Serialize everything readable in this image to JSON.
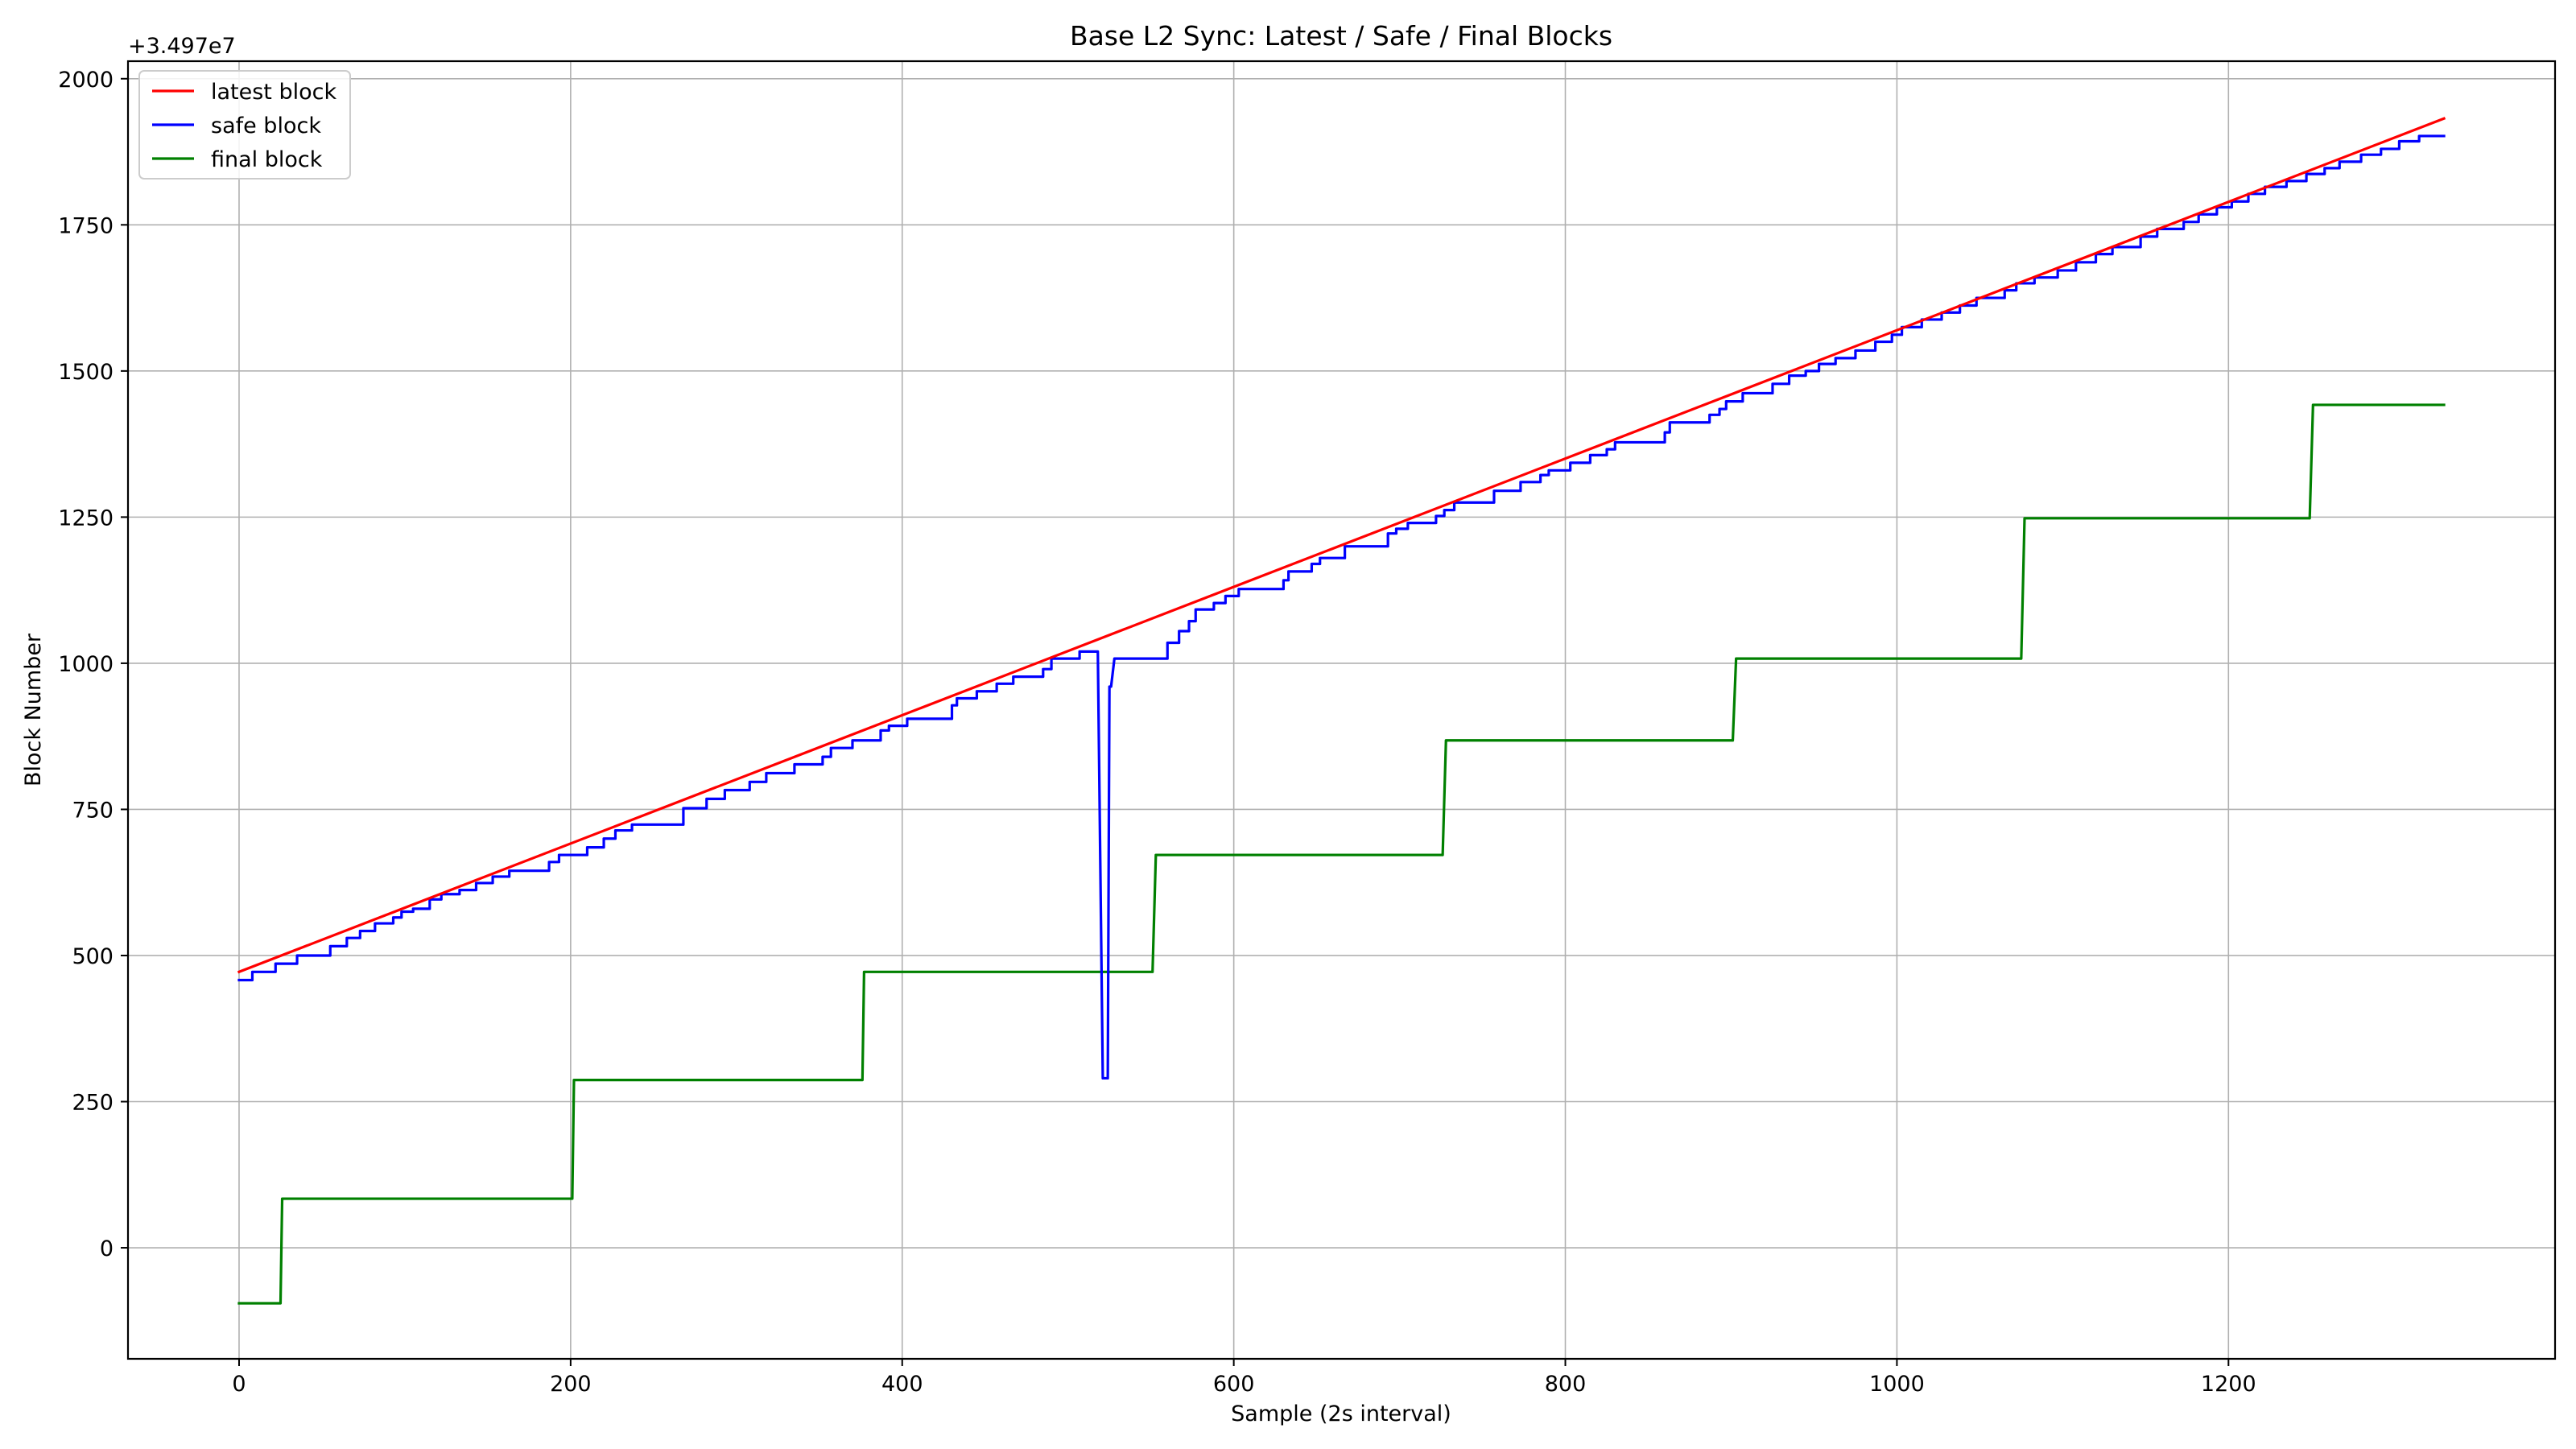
{
  "chart_data": {
    "type": "line",
    "title": "Base L2 Sync: Latest / Safe / Final Blocks",
    "xlabel": "Sample (2s interval)",
    "ylabel": "Block Number",
    "y_offset_label": "+3.497e7",
    "xlim": [
      -67,
      1397
    ],
    "ylim": [
      -190,
      2030
    ],
    "x_ticks": [
      0,
      200,
      400,
      600,
      800,
      1000,
      1200
    ],
    "y_ticks": [
      0,
      250,
      500,
      750,
      1000,
      1250,
      1500,
      1750,
      2000
    ],
    "grid": true,
    "legend_position": "upper-left",
    "series": [
      {
        "name": "latest block",
        "color": "#ff0000",
        "points": [
          [
            0,
            472
          ],
          [
            1330,
            1932
          ]
        ]
      },
      {
        "name": "safe block",
        "color": "#0000ff",
        "points": [
          [
            0,
            458
          ],
          [
            8,
            458
          ],
          [
            8,
            472
          ],
          [
            22,
            472
          ],
          [
            22,
            486
          ],
          [
            35,
            486
          ],
          [
            35,
            500
          ],
          [
            55,
            500
          ],
          [
            55,
            516
          ],
          [
            65,
            516
          ],
          [
            65,
            530
          ],
          [
            73,
            530
          ],
          [
            73,
            542
          ],
          [
            82,
            542
          ],
          [
            82,
            555
          ],
          [
            93,
            555
          ],
          [
            93,
            565
          ],
          [
            98,
            565
          ],
          [
            98,
            575
          ],
          [
            105,
            575
          ],
          [
            105,
            580
          ],
          [
            115,
            580
          ],
          [
            115,
            596
          ],
          [
            122,
            596
          ],
          [
            122,
            605
          ],
          [
            133,
            605
          ],
          [
            133,
            612
          ],
          [
            143,
            612
          ],
          [
            143,
            624
          ],
          [
            153,
            624
          ],
          [
            153,
            635
          ],
          [
            163,
            635
          ],
          [
            163,
            645
          ],
          [
            187,
            645
          ],
          [
            187,
            660
          ],
          [
            193,
            660
          ],
          [
            193,
            672
          ],
          [
            210,
            672
          ],
          [
            210,
            685
          ],
          [
            220,
            685
          ],
          [
            220,
            700
          ],
          [
            227,
            700
          ],
          [
            227,
            714
          ],
          [
            237,
            714
          ],
          [
            237,
            724
          ],
          [
            268,
            724
          ],
          [
            268,
            752
          ],
          [
            282,
            752
          ],
          [
            282,
            768
          ],
          [
            293,
            768
          ],
          [
            293,
            783
          ],
          [
            308,
            783
          ],
          [
            308,
            797
          ],
          [
            318,
            797
          ],
          [
            318,
            812
          ],
          [
            335,
            812
          ],
          [
            335,
            827
          ],
          [
            352,
            827
          ],
          [
            352,
            840
          ],
          [
            357,
            840
          ],
          [
            357,
            855
          ],
          [
            370,
            855
          ],
          [
            370,
            868
          ],
          [
            387,
            868
          ],
          [
            387,
            885
          ],
          [
            392,
            885
          ],
          [
            392,
            893
          ],
          [
            403,
            893
          ],
          [
            403,
            905
          ],
          [
            430,
            905
          ],
          [
            430,
            928
          ],
          [
            433,
            928
          ],
          [
            433,
            940
          ],
          [
            445,
            940
          ],
          [
            445,
            952
          ],
          [
            457,
            952
          ],
          [
            457,
            965
          ],
          [
            467,
            965
          ],
          [
            467,
            977
          ],
          [
            485,
            977
          ],
          [
            485,
            990
          ],
          [
            490,
            990
          ],
          [
            490,
            1008
          ],
          [
            507,
            1008
          ],
          [
            507,
            1020
          ],
          [
            518,
            1020
          ],
          [
            521,
            290
          ],
          [
            524,
            290
          ],
          [
            525,
            960
          ],
          [
            526,
            960
          ],
          [
            528,
            1008
          ],
          [
            560,
            1008
          ],
          [
            560,
            1035
          ],
          [
            567,
            1035
          ],
          [
            567,
            1055
          ],
          [
            573,
            1055
          ],
          [
            573,
            1072
          ],
          [
            577,
            1072
          ],
          [
            577,
            1092
          ],
          [
            588,
            1092
          ],
          [
            588,
            1103
          ],
          [
            595,
            1103
          ],
          [
            595,
            1115
          ],
          [
            603,
            1115
          ],
          [
            603,
            1127
          ],
          [
            630,
            1127
          ],
          [
            630,
            1142
          ],
          [
            633,
            1142
          ],
          [
            633,
            1157
          ],
          [
            647,
            1157
          ],
          [
            647,
            1170
          ],
          [
            652,
            1170
          ],
          [
            652,
            1180
          ],
          [
            667,
            1180
          ],
          [
            667,
            1200
          ],
          [
            693,
            1200
          ],
          [
            693,
            1222
          ],
          [
            698,
            1222
          ],
          [
            698,
            1230
          ],
          [
            705,
            1230
          ],
          [
            705,
            1240
          ],
          [
            722,
            1240
          ],
          [
            722,
            1252
          ],
          [
            727,
            1252
          ],
          [
            727,
            1262
          ],
          [
            733,
            1262
          ],
          [
            733,
            1275
          ],
          [
            757,
            1275
          ],
          [
            757,
            1295
          ],
          [
            773,
            1295
          ],
          [
            773,
            1310
          ],
          [
            785,
            1310
          ],
          [
            785,
            1322
          ],
          [
            790,
            1322
          ],
          [
            790,
            1330
          ],
          [
            803,
            1330
          ],
          [
            803,
            1343
          ],
          [
            815,
            1343
          ],
          [
            815,
            1356
          ],
          [
            825,
            1356
          ],
          [
            825,
            1366
          ],
          [
            830,
            1366
          ],
          [
            830,
            1378
          ],
          [
            860,
            1378
          ],
          [
            860,
            1395
          ],
          [
            863,
            1395
          ],
          [
            863,
            1412
          ],
          [
            887,
            1412
          ],
          [
            887,
            1425
          ],
          [
            893,
            1425
          ],
          [
            893,
            1435
          ],
          [
            897,
            1435
          ],
          [
            897,
            1448
          ],
          [
            907,
            1448
          ],
          [
            907,
            1462
          ],
          [
            925,
            1462
          ],
          [
            925,
            1478
          ],
          [
            935,
            1478
          ],
          [
            935,
            1492
          ],
          [
            945,
            1492
          ],
          [
            945,
            1500
          ],
          [
            953,
            1500
          ],
          [
            953,
            1512
          ],
          [
            963,
            1512
          ],
          [
            963,
            1522
          ],
          [
            975,
            1522
          ],
          [
            975,
            1535
          ],
          [
            987,
            1535
          ],
          [
            987,
            1550
          ],
          [
            997,
            1550
          ],
          [
            997,
            1562
          ],
          [
            1003,
            1562
          ],
          [
            1003,
            1575
          ],
          [
            1015,
            1575
          ],
          [
            1015,
            1588
          ],
          [
            1027,
            1588
          ],
          [
            1027,
            1600
          ],
          [
            1038,
            1600
          ],
          [
            1038,
            1612
          ],
          [
            1048,
            1612
          ],
          [
            1048,
            1625
          ],
          [
            1065,
            1625
          ],
          [
            1065,
            1638
          ],
          [
            1072,
            1638
          ],
          [
            1072,
            1650
          ],
          [
            1083,
            1650
          ],
          [
            1083,
            1660
          ],
          [
            1097,
            1660
          ],
          [
            1097,
            1672
          ],
          [
            1108,
            1672
          ],
          [
            1108,
            1686
          ],
          [
            1120,
            1686
          ],
          [
            1120,
            1700
          ],
          [
            1130,
            1700
          ],
          [
            1130,
            1712
          ],
          [
            1147,
            1712
          ],
          [
            1147,
            1730
          ],
          [
            1157,
            1730
          ],
          [
            1157,
            1743
          ],
          [
            1173,
            1743
          ],
          [
            1173,
            1755
          ],
          [
            1182,
            1755
          ],
          [
            1182,
            1768
          ],
          [
            1193,
            1768
          ],
          [
            1193,
            1780
          ],
          [
            1202,
            1780
          ],
          [
            1202,
            1790
          ],
          [
            1212,
            1790
          ],
          [
            1212,
            1803
          ],
          [
            1222,
            1803
          ],
          [
            1222,
            1815
          ],
          [
            1235,
            1815
          ],
          [
            1235,
            1825
          ],
          [
            1247,
            1825
          ],
          [
            1247,
            1837
          ],
          [
            1258,
            1837
          ],
          [
            1258,
            1847
          ],
          [
            1267,
            1847
          ],
          [
            1267,
            1858
          ],
          [
            1280,
            1858
          ],
          [
            1280,
            1870
          ],
          [
            1292,
            1870
          ],
          [
            1292,
            1880
          ],
          [
            1303,
            1880
          ],
          [
            1303,
            1893
          ],
          [
            1315,
            1893
          ],
          [
            1315,
            1902
          ],
          [
            1330,
            1902
          ]
        ]
      },
      {
        "name": "final block",
        "color": "#008000",
        "points": [
          [
            0,
            -95
          ],
          [
            25,
            -95
          ],
          [
            26,
            84
          ],
          [
            201,
            84
          ],
          [
            202,
            287
          ],
          [
            376,
            287
          ],
          [
            377,
            472
          ],
          [
            551,
            472
          ],
          [
            553,
            672
          ],
          [
            726,
            672
          ],
          [
            728,
            868
          ],
          [
            901,
            868
          ],
          [
            903,
            1008
          ],
          [
            1075,
            1008
          ],
          [
            1077,
            1248
          ],
          [
            1249,
            1248
          ],
          [
            1251,
            1442
          ],
          [
            1330,
            1442
          ]
        ]
      }
    ]
  }
}
